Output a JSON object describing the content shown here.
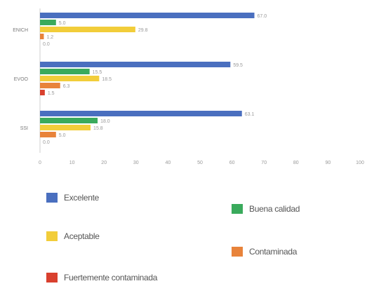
{
  "chart_data": {
    "type": "bar",
    "orientation": "horizontal",
    "categories": [
      "ENICH",
      "EVOO",
      "SSI"
    ],
    "series": [
      {
        "name": "Excelente",
        "color": "#4a6fbf",
        "values": [
          67.0,
          59.5,
          63.1
        ]
      },
      {
        "name": "Buena calidad",
        "color": "#3aaa5c",
        "values": [
          5.0,
          15.5,
          18.0
        ]
      },
      {
        "name": "Aceptable",
        "color": "#f2cd3a",
        "values": [
          29.8,
          18.5,
          15.8
        ]
      },
      {
        "name": "Contaminada",
        "color": "#e8833a",
        "values": [
          1.2,
          6.3,
          5.0
        ]
      },
      {
        "name": "Fuertemente contaminada",
        "color": "#d9402e",
        "values": [
          0.0,
          1.5,
          0.0
        ]
      }
    ],
    "xlim": [
      0,
      100
    ],
    "xticks": [
      0,
      10,
      20,
      30,
      40,
      50,
      60,
      70,
      80,
      90,
      100
    ],
    "grid": false,
    "legend_position": "bottom"
  }
}
